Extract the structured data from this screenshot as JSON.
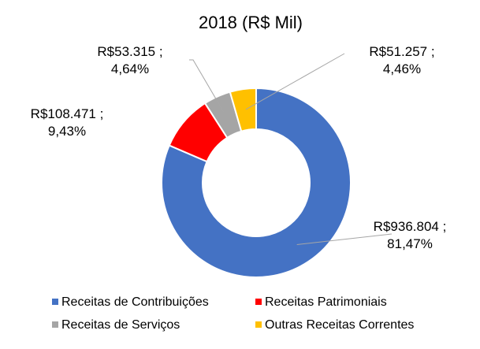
{
  "chart_data": {
    "type": "donut",
    "title": "2018 (R$ Mil)",
    "categories": [
      "Receitas de Contribuições",
      "Receitas Patrimoniais",
      "Receitas de Serviços",
      "Outras Receitas Correntes"
    ],
    "values": [
      936804,
      108471,
      53315,
      51257
    ],
    "value_labels": [
      [
        "R$936.804 ;",
        "81,47%"
      ],
      [
        "R$108.471 ;",
        "9,43%"
      ],
      [
        "R$53.315 ;",
        "4,64%"
      ],
      [
        "R$51.257 ;",
        "4,46%"
      ]
    ],
    "colors": [
      "#4472c4",
      "#ff0000",
      "#a5a5a5",
      "#ffc000"
    ],
    "legend": "bottom"
  }
}
